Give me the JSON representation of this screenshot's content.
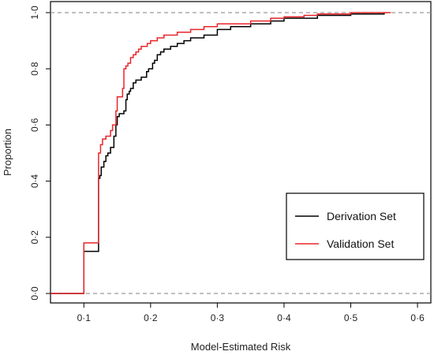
{
  "chart_data": {
    "type": "line",
    "xlabel": "Model-Estimated Risk",
    "ylabel": "Proportion",
    "xlim": [
      0.05,
      0.62
    ],
    "ylim": [
      0,
      1
    ],
    "x_ticks": [
      0.1,
      0.2,
      0.3,
      0.4,
      0.5,
      0.6
    ],
    "x_tick_labels": [
      "0·1",
      "0·2",
      "0·3",
      "0·4",
      "0·5",
      "0·6"
    ],
    "y_ticks": [
      0,
      0.2,
      0.4,
      0.6,
      0.8,
      1.0
    ],
    "y_tick_labels": [
      "0·0",
      "0·2",
      "0·4",
      "0·6",
      "0·8",
      "1·0"
    ],
    "reference_lines": [
      0,
      1
    ],
    "legend": {
      "position": "bottom-right"
    },
    "series": [
      {
        "name": "Derivation Set",
        "color": "#000000",
        "x": [
          0.05,
          0.1,
          0.1,
          0.122,
          0.122,
          0.124,
          0.126,
          0.13,
          0.133,
          0.136,
          0.14,
          0.145,
          0.148,
          0.15,
          0.153,
          0.157,
          0.16,
          0.163,
          0.165,
          0.168,
          0.17,
          0.174,
          0.178,
          0.182,
          0.186,
          0.19,
          0.194,
          0.197,
          0.2,
          0.203,
          0.206,
          0.21,
          0.215,
          0.22,
          0.23,
          0.24,
          0.25,
          0.26,
          0.28,
          0.3,
          0.32,
          0.35,
          0.38,
          0.4,
          0.43,
          0.45,
          0.5,
          0.55
        ],
        "y": [
          0,
          0,
          0.15,
          0.15,
          0.41,
          0.42,
          0.45,
          0.47,
          0.49,
          0.5,
          0.52,
          0.56,
          0.6,
          0.63,
          0.64,
          0.64,
          0.65,
          0.69,
          0.71,
          0.72,
          0.73,
          0.75,
          0.76,
          0.76,
          0.77,
          0.77,
          0.79,
          0.8,
          0.8,
          0.82,
          0.83,
          0.85,
          0.86,
          0.87,
          0.88,
          0.89,
          0.9,
          0.91,
          0.92,
          0.94,
          0.95,
          0.96,
          0.97,
          0.98,
          0.98,
          0.99,
          0.995,
          1.0
        ]
      },
      {
        "name": "Validation Set",
        "color": "#e8262a",
        "x": [
          0.05,
          0.1,
          0.1,
          0.122,
          0.122,
          0.125,
          0.128,
          0.133,
          0.14,
          0.143,
          0.148,
          0.15,
          0.153,
          0.158,
          0.16,
          0.163,
          0.166,
          0.17,
          0.174,
          0.178,
          0.182,
          0.186,
          0.19,
          0.195,
          0.2,
          0.205,
          0.21,
          0.215,
          0.22,
          0.23,
          0.24,
          0.25,
          0.26,
          0.28,
          0.3,
          0.32,
          0.35,
          0.38,
          0.4,
          0.43,
          0.45,
          0.5,
          0.56
        ],
        "y": [
          0,
          0,
          0.18,
          0.18,
          0.5,
          0.53,
          0.55,
          0.56,
          0.58,
          0.6,
          0.65,
          0.7,
          0.7,
          0.73,
          0.8,
          0.81,
          0.82,
          0.84,
          0.85,
          0.86,
          0.87,
          0.88,
          0.88,
          0.89,
          0.9,
          0.9,
          0.91,
          0.91,
          0.92,
          0.92,
          0.93,
          0.93,
          0.94,
          0.95,
          0.96,
          0.96,
          0.97,
          0.98,
          0.985,
          0.99,
          0.995,
          1.0,
          1.0
        ]
      }
    ]
  }
}
